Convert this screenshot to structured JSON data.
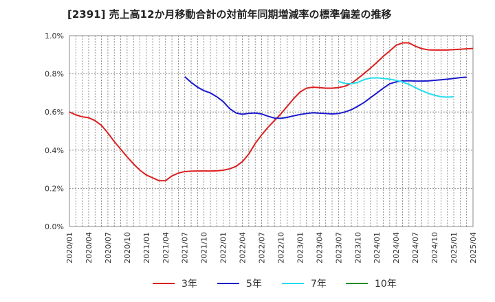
{
  "chart_data": {
    "type": "line",
    "title": "[2391]  売上高12か月移動合計の対前年同期増減率の標準偏差の推移",
    "xlabel": "",
    "ylabel": "",
    "ylim": [
      0.0,
      1.0
    ],
    "grid": true,
    "legend_position": "bottom",
    "yticks": [
      {
        "value": 0.0,
        "label": "0.0%"
      },
      {
        "value": 0.2,
        "label": "0.2%"
      },
      {
        "value": 0.4,
        "label": "0.4%"
      },
      {
        "value": 0.6,
        "label": "0.6%"
      },
      {
        "value": 0.8,
        "label": "0.8%"
      },
      {
        "value": 1.0,
        "label": "1.0%"
      }
    ],
    "xticks": [
      "2020/01",
      "2020/04",
      "2020/07",
      "2020/10",
      "2021/01",
      "2021/04",
      "2021/07",
      "2021/10",
      "2022/01",
      "2022/04",
      "2022/07",
      "2022/10",
      "2023/01",
      "2023/04",
      "2023/07",
      "2023/10",
      "2024/01",
      "2024/04",
      "2024/07",
      "2024/10",
      "2025/01",
      "2025/04"
    ],
    "x_months": [
      "2020/01",
      "2020/02",
      "2020/03",
      "2020/04",
      "2020/05",
      "2020/06",
      "2020/07",
      "2020/08",
      "2020/09",
      "2020/10",
      "2020/11",
      "2020/12",
      "2021/01",
      "2021/02",
      "2021/03",
      "2021/04",
      "2021/05",
      "2021/06",
      "2021/07",
      "2021/08",
      "2021/09",
      "2021/10",
      "2021/11",
      "2021/12",
      "2022/01",
      "2022/02",
      "2022/03",
      "2022/04",
      "2022/05",
      "2022/06",
      "2022/07",
      "2022/08",
      "2022/09",
      "2022/10",
      "2022/11",
      "2022/12",
      "2023/01",
      "2023/02",
      "2023/03",
      "2023/04",
      "2023/05",
      "2023/06",
      "2023/07",
      "2023/08",
      "2023/09",
      "2023/10",
      "2023/11",
      "2023/12",
      "2024/01",
      "2024/02",
      "2024/03",
      "2024/04",
      "2024/05",
      "2024/06",
      "2024/07",
      "2024/08",
      "2024/09",
      "2024/10",
      "2024/11",
      "2024/12",
      "2025/01",
      "2025/02",
      "2025/03",
      "2025/04"
    ],
    "series": [
      {
        "name": "3年",
        "color": "#dd1f1f",
        "start_index": 0,
        "values": [
          0.6,
          0.585,
          0.575,
          0.57,
          0.555,
          0.53,
          0.49,
          0.445,
          0.405,
          0.365,
          0.328,
          0.295,
          0.27,
          0.255,
          0.24,
          0.24,
          0.265,
          0.28,
          0.288,
          0.29,
          0.291,
          0.291,
          0.291,
          0.292,
          0.295,
          0.302,
          0.315,
          0.34,
          0.38,
          0.435,
          0.48,
          0.52,
          0.555,
          0.59,
          0.63,
          0.67,
          0.705,
          0.725,
          0.73,
          0.728,
          0.725,
          0.725,
          0.728,
          0.735,
          0.75,
          0.775,
          0.802,
          0.83,
          0.86,
          0.892,
          0.92,
          0.95,
          0.962,
          0.962,
          0.945,
          0.932,
          0.926,
          0.925,
          0.925,
          0.925,
          0.927,
          0.929,
          0.931,
          0.933
        ]
      },
      {
        "name": "5年",
        "color": "#1a1acc",
        "start_index": 18,
        "values": [
          0.785,
          0.755,
          0.73,
          0.712,
          0.7,
          0.68,
          0.655,
          0.618,
          0.595,
          0.588,
          0.593,
          0.595,
          0.59,
          0.578,
          0.568,
          0.567,
          0.572,
          0.58,
          0.587,
          0.592,
          0.596,
          0.594,
          0.592,
          0.59,
          0.592,
          0.6,
          0.612,
          0.63,
          0.65,
          0.675,
          0.7,
          0.725,
          0.748,
          0.758,
          0.763,
          0.764,
          0.762,
          0.762,
          0.763,
          0.766,
          0.769,
          0.772,
          0.776,
          0.78,
          0.783
        ]
      },
      {
        "name": "7年",
        "color": "#22ddee",
        "start_index": 42,
        "values": [
          0.76,
          0.75,
          0.748,
          0.755,
          0.77,
          0.778,
          0.779,
          0.776,
          0.772,
          0.766,
          0.758,
          0.745,
          0.728,
          0.712,
          0.698,
          0.688,
          0.68,
          0.678,
          0.68
        ]
      },
      {
        "name": "10年",
        "color": "#228b22",
        "start_index": 0,
        "values": []
      }
    ]
  }
}
